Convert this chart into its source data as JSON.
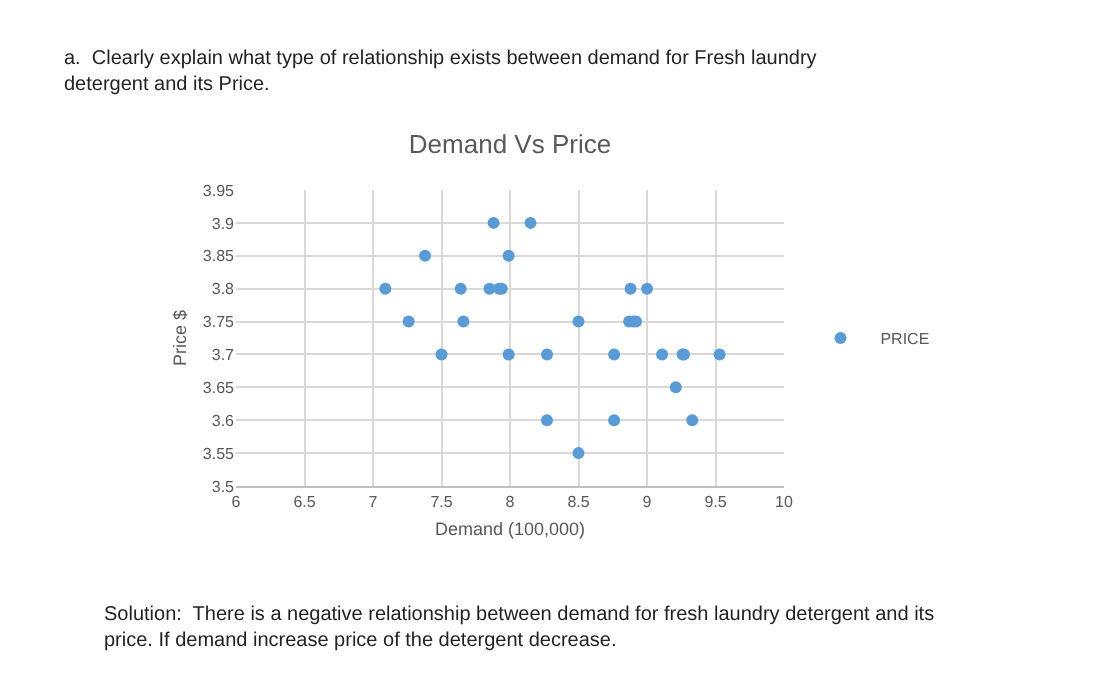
{
  "chart_data": {
    "type": "scatter",
    "title": "Demand Vs Price",
    "xlabel": "Demand (100,000)",
    "ylabel": "Price $",
    "annotations": [
      "a.  Clearly explain what type of relationship exists between demand for Fresh laundry detergent and its Price.",
      "Solution:  There is a negative relationship between demand for fresh laundry detergent and its price. If demand increase price of the detergent decrease."
    ],
    "series": [
      {
        "name": "PRICE",
        "color": "#5b9bd5",
        "x": [
          7.88,
          8.15,
          7.38,
          7.99,
          7.09,
          7.64,
          7.85,
          7.92,
          7.94,
          8.88,
          9.0,
          7.26,
          7.66,
          8.5,
          8.87,
          8.9,
          8.92,
          7.5,
          7.99,
          8.27,
          8.76,
          9.11,
          9.26,
          9.27,
          9.53,
          9.21,
          8.27,
          8.76,
          9.33,
          8.5
        ],
        "values": [
          3.9,
          3.9,
          3.85,
          3.85,
          3.8,
          3.8,
          3.8,
          3.8,
          3.8,
          3.8,
          3.8,
          3.75,
          3.75,
          3.75,
          3.75,
          3.75,
          3.75,
          3.7,
          3.7,
          3.7,
          3.7,
          3.7,
          3.7,
          3.7,
          3.7,
          3.65,
          3.6,
          3.6,
          3.6,
          3.55
        ]
      }
    ],
    "xlim": [
      6,
      10
    ],
    "xticks": [
      6,
      6.5,
      7,
      7.5,
      8,
      8.5,
      9,
      9.5,
      10
    ],
    "ylim": [
      3.5,
      3.95
    ],
    "yticks": [
      3.5,
      3.55,
      3.6,
      3.65,
      3.7,
      3.75,
      3.8,
      3.85,
      3.9,
      3.95
    ],
    "grid": true,
    "legend": "right",
    "marker": "circle"
  }
}
